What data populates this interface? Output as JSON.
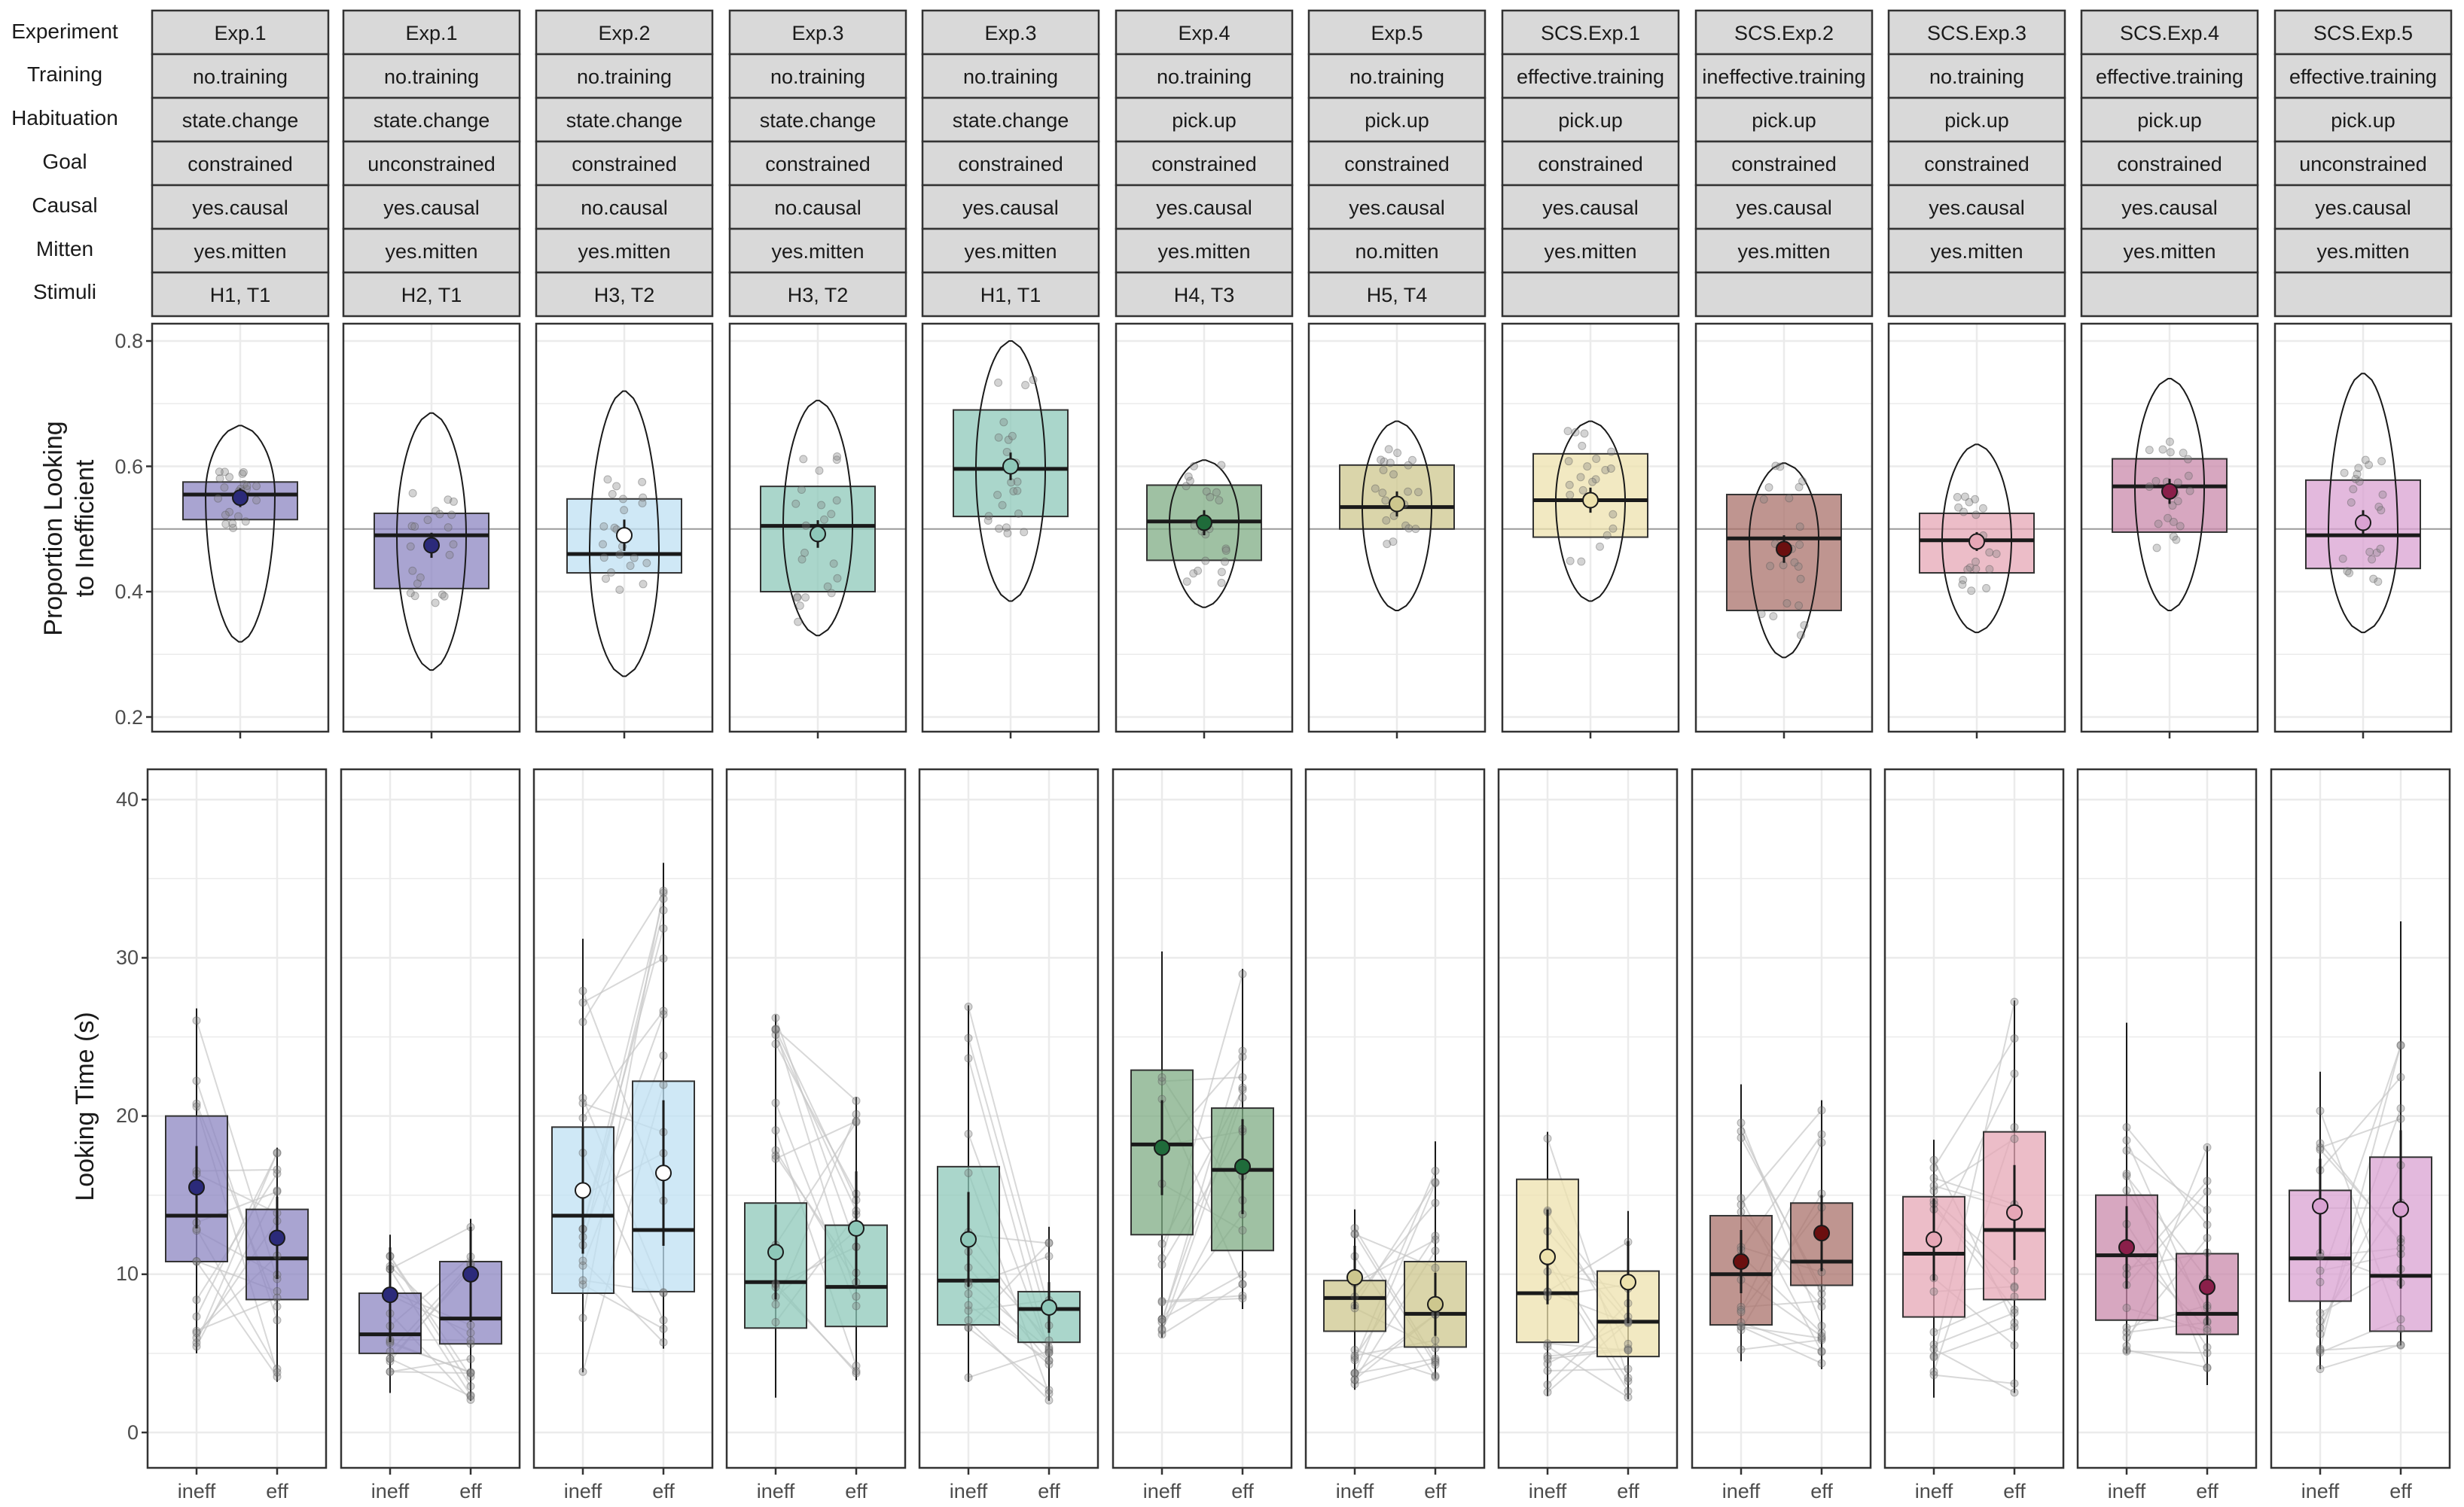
{
  "figure": {
    "row_labels": [
      "Experiment",
      "Training",
      "Habituation",
      "Goal",
      "Causal",
      "Mitten",
      "Stimuli"
    ],
    "top_ylabel_line1": "Proportion Looking",
    "top_ylabel_line2": "to Inefficient",
    "bottom_ylabel": "Looking Time (s)",
    "top_yticks": [
      "0.2",
      "0.4",
      "0.6",
      "0.8"
    ],
    "bottom_yticks": [
      "0",
      "10",
      "20",
      "30",
      "40"
    ],
    "bottom_xticks": [
      "ineff",
      "eff"
    ],
    "colors": {
      "strip_fill": "#d9d9d9",
      "panel_border": "#333333",
      "grid": "#ebebeb",
      "ref_line": "#9a9a9a",
      "pair_line": "#c8c8c8",
      "point": "#808080"
    }
  },
  "panels": [
    {
      "Experiment": "Exp.1",
      "Training": "no.training",
      "Habituation": "state.change",
      "Goal": "constrained",
      "Causal": "yes.causal",
      "Mitten": "yes.mitten",
      "Stimuli": "H1, T1",
      "color": "#8c86c2",
      "dot": "#2b2a7a"
    },
    {
      "Experiment": "Exp.1",
      "Training": "no.training",
      "Habituation": "state.change",
      "Goal": "unconstrained",
      "Causal": "yes.causal",
      "Mitten": "yes.mitten",
      "Stimuli": "H2, T1",
      "color": "#8c86c2",
      "dot": "#2b2a7a"
    },
    {
      "Experiment": "Exp.2",
      "Training": "no.training",
      "Habituation": "state.change",
      "Goal": "constrained",
      "Causal": "no.causal",
      "Mitten": "yes.mitten",
      "Stimuli": "H3, T2",
      "color": "#bfe0f3",
      "dot": "#ffffff"
    },
    {
      "Experiment": "Exp.3",
      "Training": "no.training",
      "Habituation": "state.change",
      "Goal": "constrained",
      "Causal": "no.causal",
      "Mitten": "yes.mitten",
      "Stimuli": "H3, T2",
      "color": "#8ec8b9",
      "dot": "#8ec8b9"
    },
    {
      "Experiment": "Exp.3",
      "Training": "no.training",
      "Habituation": "state.change",
      "Goal": "constrained",
      "Causal": "yes.causal",
      "Mitten": "yes.mitten",
      "Stimuli": "H1, T1",
      "color": "#8ec8b9",
      "dot": "#8ec8b9"
    },
    {
      "Experiment": "Exp.4",
      "Training": "no.training",
      "Habituation": "pick.up",
      "Goal": "constrained",
      "Causal": "yes.causal",
      "Mitten": "yes.mitten",
      "Stimuli": "H4, T3",
      "color": "#7fac84",
      "dot": "#1f6b3a"
    },
    {
      "Experiment": "Exp.5",
      "Training": "no.training",
      "Habituation": "pick.up",
      "Goal": "constrained",
      "Causal": "yes.causal",
      "Mitten": "no.mitten",
      "Stimuli": "H5, T4",
      "color": "#cdc78e",
      "dot": "#cdc78e"
    },
    {
      "Experiment": "SCS.Exp.1",
      "Training": "effective.training",
      "Habituation": "pick.up",
      "Goal": "constrained",
      "Causal": "yes.causal",
      "Mitten": "yes.mitten",
      "Stimuli": "",
      "color": "#ede2ad",
      "dot": "#ede2ad"
    },
    {
      "Experiment": "SCS.Exp.2",
      "Training": "ineffective.training",
      "Habituation": "pick.up",
      "Goal": "constrained",
      "Causal": "yes.causal",
      "Mitten": "yes.mitten",
      "Stimuli": "",
      "color": "#a9716b",
      "dot": "#6b0f0f"
    },
    {
      "Experiment": "SCS.Exp.3",
      "Training": "no.training",
      "Habituation": "pick.up",
      "Goal": "constrained",
      "Causal": "yes.causal",
      "Mitten": "yes.mitten",
      "Stimuli": "",
      "color": "#e6a7b6",
      "dot": "#e6a7b6"
    },
    {
      "Experiment": "SCS.Exp.4",
      "Training": "effective.training",
      "Habituation": "pick.up",
      "Goal": "constrained",
      "Causal": "yes.causal",
      "Mitten": "yes.mitten",
      "Stimuli": "",
      "color": "#c98aab",
      "dot": "#8a1f4a"
    },
    {
      "Experiment": "SCS.Exp.5",
      "Training": "effective.training",
      "Habituation": "pick.up",
      "Goal": "unconstrained",
      "Causal": "yes.causal",
      "Mitten": "yes.mitten",
      "Stimuli": "",
      "color": "#d9a2d2",
      "dot": "#d9a2d2"
    }
  ],
  "chart_data": [
    {
      "type": "box",
      "ylabel": "Proportion Looking to Inefficient",
      "ylim": [
        0.18,
        0.82
      ],
      "yticks": [
        0.2,
        0.4,
        0.6,
        0.8
      ],
      "reference_line": 0.5,
      "grid": true,
      "groups": [
        {
          "min": 0.32,
          "q1": 0.515,
          "median": 0.555,
          "q3": 0.575,
          "max": 0.665,
          "mean": 0.55,
          "se": 0.015
        },
        {
          "min": 0.275,
          "q1": 0.405,
          "median": 0.49,
          "q3": 0.525,
          "max": 0.685,
          "mean": 0.474,
          "se": 0.02
        },
        {
          "min": 0.265,
          "q1": 0.43,
          "median": 0.46,
          "q3": 0.548,
          "max": 0.72,
          "mean": 0.49,
          "se": 0.025
        },
        {
          "min": 0.33,
          "q1": 0.4,
          "median": 0.505,
          "q3": 0.568,
          "max": 0.705,
          "mean": 0.492,
          "se": 0.022
        },
        {
          "min": 0.385,
          "q1": 0.52,
          "median": 0.596,
          "q3": 0.69,
          "max": 0.8,
          "mean": 0.6,
          "se": 0.022
        },
        {
          "min": 0.375,
          "q1": 0.45,
          "median": 0.512,
          "q3": 0.57,
          "max": 0.61,
          "mean": 0.51,
          "se": 0.02
        },
        {
          "min": 0.37,
          "q1": 0.5,
          "median": 0.535,
          "q3": 0.602,
          "max": 0.672,
          "mean": 0.54,
          "se": 0.02
        },
        {
          "min": 0.385,
          "q1": 0.487,
          "median": 0.546,
          "q3": 0.62,
          "max": 0.672,
          "mean": 0.546,
          "se": 0.02
        },
        {
          "min": 0.295,
          "q1": 0.37,
          "median": 0.485,
          "q3": 0.555,
          "max": 0.605,
          "mean": 0.468,
          "se": 0.022
        },
        {
          "min": 0.335,
          "q1": 0.43,
          "median": 0.482,
          "q3": 0.525,
          "max": 0.635,
          "mean": 0.48,
          "se": 0.015
        },
        {
          "min": 0.37,
          "q1": 0.495,
          "median": 0.568,
          "q3": 0.612,
          "max": 0.74,
          "mean": 0.56,
          "se": 0.02
        },
        {
          "min": 0.335,
          "q1": 0.437,
          "median": 0.49,
          "q3": 0.578,
          "max": 0.748,
          "mean": 0.51,
          "se": 0.02
        }
      ]
    },
    {
      "type": "box",
      "ylabel": "Looking Time (s)",
      "categories": [
        "ineff",
        "eff"
      ],
      "ylim": [
        -2,
        42
      ],
      "yticks": [
        0,
        10,
        20,
        30,
        40
      ],
      "grid": true,
      "groups": [
        {
          "ineff": {
            "lo": 5,
            "q1": 10.8,
            "median": 13.7,
            "q3": 20,
            "hi": 26.8,
            "mean": 15.5,
            "se": 1.3
          },
          "eff": {
            "lo": 3.2,
            "q1": 8.4,
            "median": 11,
            "q3": 14.1,
            "hi": 18,
            "mean": 12.3,
            "se": 1.3
          }
        },
        {
          "ineff": {
            "lo": 2.5,
            "q1": 5,
            "median": 6.2,
            "q3": 8.8,
            "hi": 12.5,
            "mean": 8.7,
            "se": 1.5
          },
          "eff": {
            "lo": 2,
            "q1": 5.6,
            "median": 7.2,
            "q3": 10.8,
            "hi": 13.5,
            "mean": 10,
            "se": 1.5
          }
        },
        {
          "ineff": {
            "lo": 3.8,
            "q1": 8.8,
            "median": 13.7,
            "q3": 19.3,
            "hi": 31.2,
            "mean": 15.3,
            "se": 2
          },
          "eff": {
            "lo": 5.3,
            "q1": 8.9,
            "median": 12.8,
            "q3": 22.2,
            "hi": 36,
            "mean": 16.4,
            "se": 2.3
          }
        },
        {
          "ineff": {
            "lo": 2.2,
            "q1": 6.6,
            "median": 9.5,
            "q3": 14.5,
            "hi": 26.4,
            "mean": 11.4,
            "se": 1.5
          },
          "eff": {
            "lo": 3.3,
            "q1": 6.7,
            "median": 9.2,
            "q3": 13.1,
            "hi": 21.2,
            "mean": 12.9,
            "se": 1.8
          }
        },
        {
          "ineff": {
            "lo": 3.2,
            "q1": 6.8,
            "median": 9.6,
            "q3": 16.8,
            "hi": 27,
            "mean": 12.2,
            "se": 1.5
          },
          "eff": {
            "lo": 2,
            "q1": 5.7,
            "median": 7.8,
            "q3": 8.9,
            "hi": 13,
            "mean": 7.9,
            "se": 0.8
          }
        },
        {
          "ineff": {
            "lo": 6,
            "q1": 12.5,
            "median": 18.2,
            "q3": 22.9,
            "hi": 30.4,
            "mean": 18,
            "se": 1.5
          },
          "eff": {
            "lo": 7.8,
            "q1": 11.5,
            "median": 16.6,
            "q3": 20.5,
            "hi": 29.3,
            "mean": 16.8,
            "se": 1.5
          }
        },
        {
          "ineff": {
            "lo": 2.7,
            "q1": 6.4,
            "median": 8.5,
            "q3": 9.6,
            "hi": 14.1,
            "mean": 9.8,
            "se": 1
          },
          "eff": {
            "lo": 3.4,
            "q1": 5.4,
            "median": 7.5,
            "q3": 10.8,
            "hi": 18.4,
            "mean": 8.1,
            "se": 1
          }
        },
        {
          "ineff": {
            "lo": 2.3,
            "q1": 5.7,
            "median": 8.8,
            "q3": 16,
            "hi": 19,
            "mean": 11.1,
            "se": 1.5
          },
          "eff": {
            "lo": 2.1,
            "q1": 4.8,
            "median": 7,
            "q3": 10.2,
            "hi": 14,
            "mean": 9.5,
            "se": 1.3
          }
        },
        {
          "ineff": {
            "lo": 4.5,
            "q1": 6.8,
            "median": 10,
            "q3": 13.7,
            "hi": 22,
            "mean": 10.8,
            "se": 1
          },
          "eff": {
            "lo": 4,
            "q1": 9.3,
            "median": 10.8,
            "q3": 14.5,
            "hi": 21,
            "mean": 12.6,
            "se": 1.2
          }
        },
        {
          "ineff": {
            "lo": 2.2,
            "q1": 7.3,
            "median": 11.3,
            "q3": 14.9,
            "hi": 18.5,
            "mean": 12.2,
            "se": 1.3
          },
          "eff": {
            "lo": 2.5,
            "q1": 8.4,
            "median": 12.8,
            "q3": 19,
            "hi": 27.3,
            "mean": 13.9,
            "se": 1.5
          }
        },
        {
          "ineff": {
            "lo": 5,
            "q1": 7.1,
            "median": 11.2,
            "q3": 15,
            "hi": 25.9,
            "mean": 11.7,
            "se": 1.3
          },
          "eff": {
            "lo": 3,
            "q1": 6.2,
            "median": 7.5,
            "q3": 11.3,
            "hi": 18.1,
            "mean": 9.2,
            "se": 1.2
          }
        },
        {
          "ineff": {
            "lo": 4,
            "q1": 8.3,
            "median": 11,
            "q3": 15.3,
            "hi": 22.8,
            "mean": 14.3,
            "se": 1.5
          },
          "eff": {
            "lo": 5.5,
            "q1": 6.4,
            "median": 9.9,
            "q3": 17.4,
            "hi": 32.3,
            "mean": 14.1,
            "se": 2.5
          }
        }
      ]
    }
  ]
}
